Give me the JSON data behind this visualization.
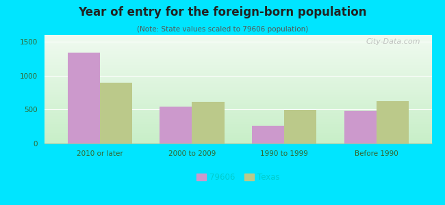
{
  "title": "Year of entry for the foreign-born population",
  "subtitle": "(Note: State values scaled to 79606 population)",
  "categories": [
    "2010 or later",
    "2000 to 2009",
    "1990 to 1999",
    "Before 1990"
  ],
  "values_city": [
    1340,
    540,
    260,
    480
  ],
  "values_state": [
    900,
    610,
    495,
    620
  ],
  "color_city": "#cc99cc",
  "color_state": "#bbc98a",
  "legend_city": "79606",
  "legend_state": "Texas",
  "ylim": [
    0,
    1600
  ],
  "yticks": [
    0,
    500,
    1000,
    1500
  ],
  "background_outer": "#00e5ff",
  "grad_bottom": "#c8efc8",
  "grad_top": "#f0faf0",
  "bar_width": 0.35,
  "watermark": "City-Data.com"
}
